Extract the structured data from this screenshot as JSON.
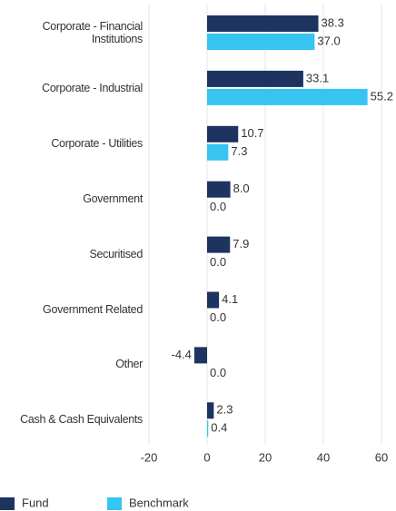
{
  "chart_data": {
    "type": "hbar",
    "categories": [
      "Corporate - Financial Institutions",
      "Corporate - Industrial",
      "Corporate - Utilities",
      "Government",
      "Securitised",
      "Government Related",
      "Other",
      "Cash & Cash Equivalents"
    ],
    "series": [
      {
        "name": "Fund",
        "color": "#1d3461",
        "values": [
          38.3,
          33.1,
          10.7,
          8.0,
          7.9,
          4.1,
          -4.4,
          2.3
        ],
        "value_labels": [
          "38.3",
          "33.1",
          "10.7",
          "8.0",
          "7.9",
          "4.1",
          "-4.4",
          "2.3"
        ]
      },
      {
        "name": "Benchmark",
        "color": "#36c5f0",
        "values": [
          37.0,
          55.2,
          7.3,
          0.0,
          0.0,
          0.0,
          0.0,
          0.4
        ],
        "value_labels": [
          "37.0",
          "55.2",
          "7.3",
          "0.0",
          "0.0",
          "0.0",
          "0.0",
          "0.4"
        ]
      }
    ],
    "xlim": [
      -20,
      60
    ],
    "xticks": [
      -20,
      0,
      20,
      40,
      60
    ],
    "grid": true,
    "legend": "bottom"
  }
}
